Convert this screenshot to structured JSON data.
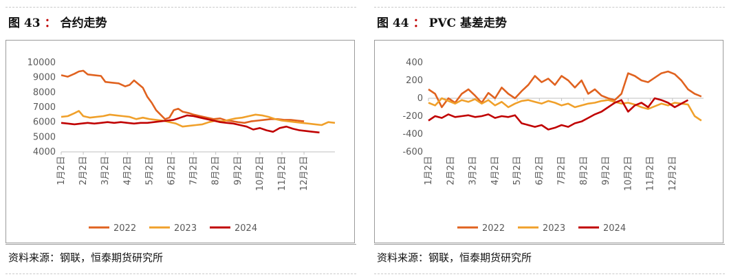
{
  "left_panel": {
    "fig_label": "图 43",
    "colon": "：",
    "fig_title": "合约走势",
    "source": "资料来源：钢联，恒泰期货研究所"
  },
  "right_panel": {
    "fig_label": "图 44",
    "colon": "：",
    "fig_title": "PVC 基差走势",
    "source": "资料来源：钢联，恒泰期货研究所"
  },
  "colors": {
    "2022": "#e0621f",
    "2023": "#f0a02a",
    "2024": "#c00000"
  },
  "chart_data": [
    {
      "type": "line",
      "title": "合约走势",
      "ylim": [
        4000,
        10000
      ],
      "yticks": [
        "10000",
        "9000",
        "8000",
        "7000",
        "6000",
        "5000",
        "4000"
      ],
      "ytick_values": [
        10000,
        9000,
        8000,
        7000,
        6000,
        5000,
        4000
      ],
      "xticks": [
        "1月2日",
        "2月2日",
        "3月2日",
        "4月2日",
        "5月2日",
        "6月2日",
        "7月2日",
        "8月2日",
        "9月2日",
        "10月2日",
        "11月2日",
        "12月2日"
      ],
      "x_range_months": [
        0,
        12.4
      ],
      "legend": [
        "2022",
        "2023",
        "2024"
      ],
      "legend_position": "bottom",
      "series": [
        {
          "name": "2022",
          "x": [
            0,
            0.3,
            0.6,
            0.8,
            1.0,
            1.2,
            1.5,
            1.8,
            2.0,
            2.3,
            2.6,
            2.9,
            3.1,
            3.3,
            3.5,
            3.7,
            3.9,
            4.1,
            4.3,
            4.5,
            4.7,
            4.9,
            5.1,
            5.3,
            5.5,
            5.8,
            6.0,
            6.3,
            6.6,
            6.9,
            7.2,
            7.5,
            7.8,
            8.0,
            8.3,
            8.6,
            8.9,
            9.2,
            9.5,
            9.8,
            10.1,
            10.4,
            10.7,
            11.0
          ],
          "y": [
            9150,
            9050,
            9250,
            9400,
            9450,
            9200,
            9150,
            9100,
            8700,
            8650,
            8600,
            8400,
            8500,
            8800,
            8550,
            8300,
            7700,
            7300,
            6800,
            6500,
            6200,
            6300,
            6800,
            6900,
            6700,
            6600,
            6500,
            6400,
            6300,
            6200,
            6250,
            6100,
            6050,
            6000,
            5950,
            6050,
            6100,
            6150,
            6200,
            6200,
            6150,
            6150,
            6100,
            6050
          ]
        },
        {
          "name": "2023",
          "x": [
            0,
            0.3,
            0.6,
            0.8,
            1.0,
            1.3,
            1.6,
            1.9,
            2.2,
            2.5,
            2.8,
            3.1,
            3.4,
            3.7,
            4.0,
            4.3,
            4.6,
            4.9,
            5.2,
            5.5,
            5.8,
            6.1,
            6.4,
            6.7,
            7.0,
            7.3,
            7.6,
            7.9,
            8.2,
            8.5,
            8.8,
            9.1,
            9.4,
            9.7,
            10.0,
            10.3,
            10.6,
            10.9,
            11.2,
            11.5,
            11.8,
            12.1,
            12.4
          ],
          "y": [
            6350,
            6400,
            6600,
            6750,
            6400,
            6300,
            6350,
            6400,
            6500,
            6450,
            6400,
            6350,
            6200,
            6300,
            6200,
            6150,
            6100,
            6000,
            5900,
            5700,
            5750,
            5800,
            5850,
            6000,
            6100,
            6050,
            6150,
            6250,
            6300,
            6400,
            6500,
            6450,
            6350,
            6200,
            6100,
            6050,
            6000,
            5950,
            5900,
            5850,
            5800,
            6000,
            5950
          ]
        },
        {
          "name": "2024",
          "x": [
            0,
            0.3,
            0.6,
            0.9,
            1.2,
            1.5,
            1.8,
            2.1,
            2.4,
            2.7,
            3.0,
            3.3,
            3.6,
            3.9,
            4.2,
            4.5,
            4.8,
            5.1,
            5.4,
            5.7,
            6.0,
            6.3,
            6.6,
            6.9,
            7.2,
            7.5,
            7.8,
            8.1,
            8.4,
            8.7,
            9.0,
            9.3,
            9.6,
            9.9,
            10.2,
            10.5,
            10.8,
            11.1,
            11.4,
            11.7
          ],
          "y": [
            5950,
            5900,
            5850,
            5900,
            5950,
            5900,
            5950,
            6000,
            5950,
            6000,
            5950,
            5900,
            5950,
            5950,
            6000,
            6050,
            6100,
            6150,
            6300,
            6450,
            6400,
            6300,
            6200,
            6100,
            6000,
            5950,
            5900,
            5800,
            5700,
            5500,
            5600,
            5450,
            5350,
            5600,
            5700,
            5550,
            5450,
            5400,
            5350,
            5300
          ]
        }
      ]
    },
    {
      "type": "line",
      "title": "PVC 基差走势",
      "ylim": [
        -600,
        400
      ],
      "yticks": [
        "400",
        "200",
        "0",
        "-200",
        "-400",
        "-600"
      ],
      "ytick_values": [
        400,
        200,
        0,
        -200,
        -400,
        -600
      ],
      "xticks": [
        "1月2日",
        "2月2日",
        "3月2日",
        "4月2日",
        "5月2日",
        "6月2日",
        "7月2日",
        "8月2日",
        "9月2日",
        "10月2日",
        "11月2日",
        "12月2日"
      ],
      "x_range_months": [
        0,
        12.4
      ],
      "legend": [
        "2022",
        "2023",
        "2024"
      ],
      "legend_position": "bottom",
      "series": [
        {
          "name": "2022",
          "x": [
            0,
            0.3,
            0.6,
            0.9,
            1.2,
            1.5,
            1.8,
            2.1,
            2.4,
            2.7,
            3.0,
            3.3,
            3.6,
            3.9,
            4.2,
            4.5,
            4.8,
            5.1,
            5.4,
            5.7,
            6.0,
            6.3,
            6.6,
            6.9,
            7.2,
            7.5,
            7.8,
            8.1,
            8.4,
            8.7,
            9.0,
            9.3,
            9.6,
            9.9,
            10.2,
            10.5,
            10.8,
            11.1,
            11.4,
            11.7,
            12.0,
            12.3
          ],
          "y": [
            100,
            50,
            -100,
            0,
            -50,
            50,
            100,
            30,
            -50,
            60,
            0,
            120,
            50,
            0,
            80,
            150,
            250,
            180,
            220,
            150,
            250,
            200,
            120,
            200,
            50,
            100,
            30,
            0,
            -20,
            50,
            280,
            250,
            200,
            180,
            230,
            280,
            300,
            270,
            200,
            100,
            50,
            20
          ]
        },
        {
          "name": "2023",
          "x": [
            0,
            0.3,
            0.6,
            0.9,
            1.2,
            1.5,
            1.8,
            2.1,
            2.4,
            2.7,
            3.0,
            3.3,
            3.6,
            3.9,
            4.2,
            4.5,
            4.8,
            5.1,
            5.4,
            5.7,
            6.0,
            6.3,
            6.6,
            6.9,
            7.2,
            7.5,
            7.8,
            8.1,
            8.4,
            8.7,
            9.0,
            9.3,
            9.6,
            9.9,
            10.2,
            10.5,
            10.8,
            11.1,
            11.4,
            11.7,
            12.0,
            12.3
          ],
          "y": [
            -50,
            -80,
            0,
            -30,
            -60,
            -20,
            -40,
            -10,
            -60,
            -20,
            -80,
            -40,
            -100,
            -60,
            -30,
            -20,
            -40,
            -60,
            -30,
            -50,
            -80,
            -60,
            -100,
            -80,
            -60,
            -50,
            -30,
            -20,
            -40,
            -60,
            -50,
            -70,
            -100,
            -120,
            -90,
            -60,
            -80,
            -50,
            -60,
            -70,
            -200,
            -250
          ]
        },
        {
          "name": "2024",
          "x": [
            0,
            0.3,
            0.6,
            0.9,
            1.2,
            1.5,
            1.8,
            2.1,
            2.4,
            2.7,
            3.0,
            3.3,
            3.6,
            3.9,
            4.2,
            4.5,
            4.8,
            5.1,
            5.4,
            5.7,
            6.0,
            6.3,
            6.6,
            6.9,
            7.2,
            7.5,
            7.8,
            8.1,
            8.4,
            8.7,
            9.0,
            9.3,
            9.6,
            9.9,
            10.2,
            10.5,
            10.8,
            11.1,
            11.4,
            11.7
          ],
          "y": [
            -250,
            -200,
            -220,
            -180,
            -210,
            -200,
            -190,
            -210,
            -200,
            -180,
            -220,
            -200,
            -210,
            -190,
            -280,
            -300,
            -320,
            -300,
            -350,
            -330,
            -300,
            -320,
            -280,
            -260,
            -220,
            -180,
            -150,
            -100,
            -50,
            -20,
            -150,
            -80,
            -50,
            -100,
            0,
            -20,
            -50,
            -100,
            -60,
            -20
          ]
        }
      ]
    }
  ]
}
